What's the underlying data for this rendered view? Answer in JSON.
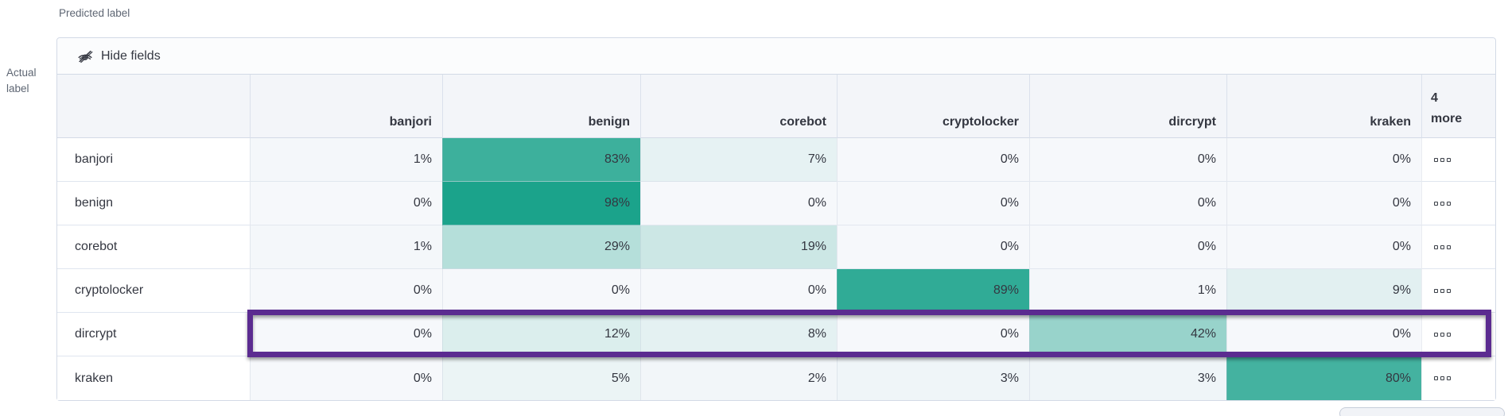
{
  "axes": {
    "predicted_label": "Predicted label",
    "actual_label": "Actual label"
  },
  "toolbar": {
    "hide_fields_label": "Hide fields",
    "hide_fields_icon": "eye-closed-icon"
  },
  "grid": {
    "unit": "%",
    "columns": [
      "banjori",
      "benign",
      "corebot",
      "cryptolocker",
      "dircrypt",
      "kraken"
    ],
    "more_column": {
      "count": "4",
      "word": "more"
    },
    "row_actions_icon": "boxes-horizontal-icon",
    "rows": [
      {
        "label": "banjori",
        "values": [
          1,
          83,
          7,
          0,
          0,
          0
        ],
        "highlighted": false
      },
      {
        "label": "benign",
        "values": [
          0,
          98,
          0,
          0,
          0,
          0
        ],
        "highlighted": false
      },
      {
        "label": "corebot",
        "values": [
          1,
          29,
          19,
          0,
          0,
          0
        ],
        "highlighted": false
      },
      {
        "label": "cryptolocker",
        "values": [
          0,
          0,
          0,
          89,
          1,
          9
        ],
        "highlighted": false
      },
      {
        "label": "dircrypt",
        "values": [
          0,
          12,
          8,
          0,
          42,
          0
        ],
        "highlighted": true
      },
      {
        "label": "kraken",
        "values": [
          0,
          5,
          2,
          3,
          3,
          80
        ],
        "highlighted": false
      }
    ]
  },
  "colors": {
    "cell_teal": "#17a189",
    "zero_cell_bg": "#f6f8fb",
    "highlight_border": "#5b2b90",
    "header_bg": "#f3f5f9",
    "panel_border": "#d3dae6",
    "text": "#343741",
    "muted_text": "#5e6673"
  },
  "chart_data": {
    "type": "heatmap",
    "xlabel": "Predicted label",
    "ylabel": "Actual label",
    "x": [
      "banjori",
      "benign",
      "corebot",
      "cryptolocker",
      "dircrypt",
      "kraken"
    ],
    "y": [
      "banjori",
      "benign",
      "corebot",
      "cryptolocker",
      "dircrypt",
      "kraken"
    ],
    "values_percent": [
      [
        1,
        83,
        7,
        0,
        0,
        0
      ],
      [
        0,
        98,
        0,
        0,
        0,
        0
      ],
      [
        1,
        29,
        19,
        0,
        0,
        0
      ],
      [
        0,
        0,
        0,
        89,
        1,
        9
      ],
      [
        0,
        12,
        8,
        0,
        42,
        0
      ],
      [
        0,
        5,
        2,
        3,
        3,
        80
      ]
    ],
    "legend_position": "none",
    "grid": true
  }
}
